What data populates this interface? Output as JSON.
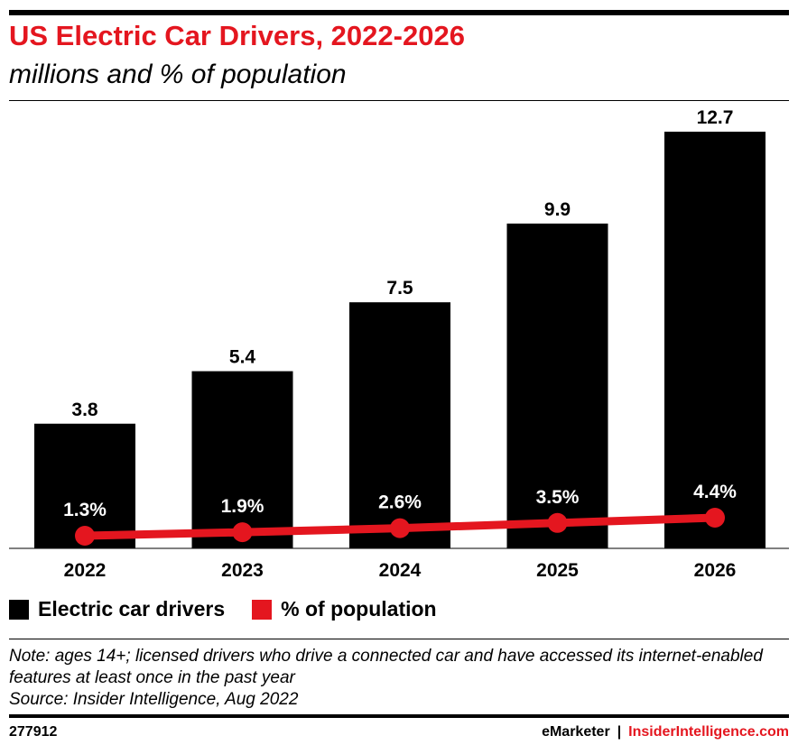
{
  "header": {
    "title": "US Electric Car Drivers, 2022-2026",
    "subtitle": "millions and % of population"
  },
  "chart_data": {
    "type": "bar",
    "categories": [
      "2022",
      "2023",
      "2024",
      "2025",
      "2026"
    ],
    "series": [
      {
        "name": "Electric car drivers",
        "values": [
          3.8,
          5.4,
          7.5,
          9.9,
          12.7
        ],
        "labels": [
          "3.8",
          "5.4",
          "7.5",
          "9.9",
          "12.7"
        ],
        "color": "#000000",
        "kind": "bar"
      },
      {
        "name": "% of population",
        "values": [
          1.3,
          1.9,
          2.6,
          3.5,
          4.4
        ],
        "labels": [
          "1.3%",
          "1.9%",
          "2.6%",
          "3.5%",
          "4.4%"
        ],
        "color": "#e4161f",
        "kind": "line"
      }
    ],
    "legend": "bottom-left",
    "grid": false
  },
  "legend": {
    "items": [
      {
        "label": "Electric car drivers",
        "color": "#000000"
      },
      {
        "label": "% of population",
        "color": "#e4161f"
      }
    ]
  },
  "note": {
    "line1": "Note: ages 14+; licensed drivers who drive a connected car and have accessed its internet-enabled features at least once in the past year",
    "source": "Source: Insider Intelligence, Aug 2022"
  },
  "footer": {
    "chart_id": "277912",
    "brand": "eMarketer",
    "separator": "|",
    "site": "InsiderIntelligence.com"
  }
}
